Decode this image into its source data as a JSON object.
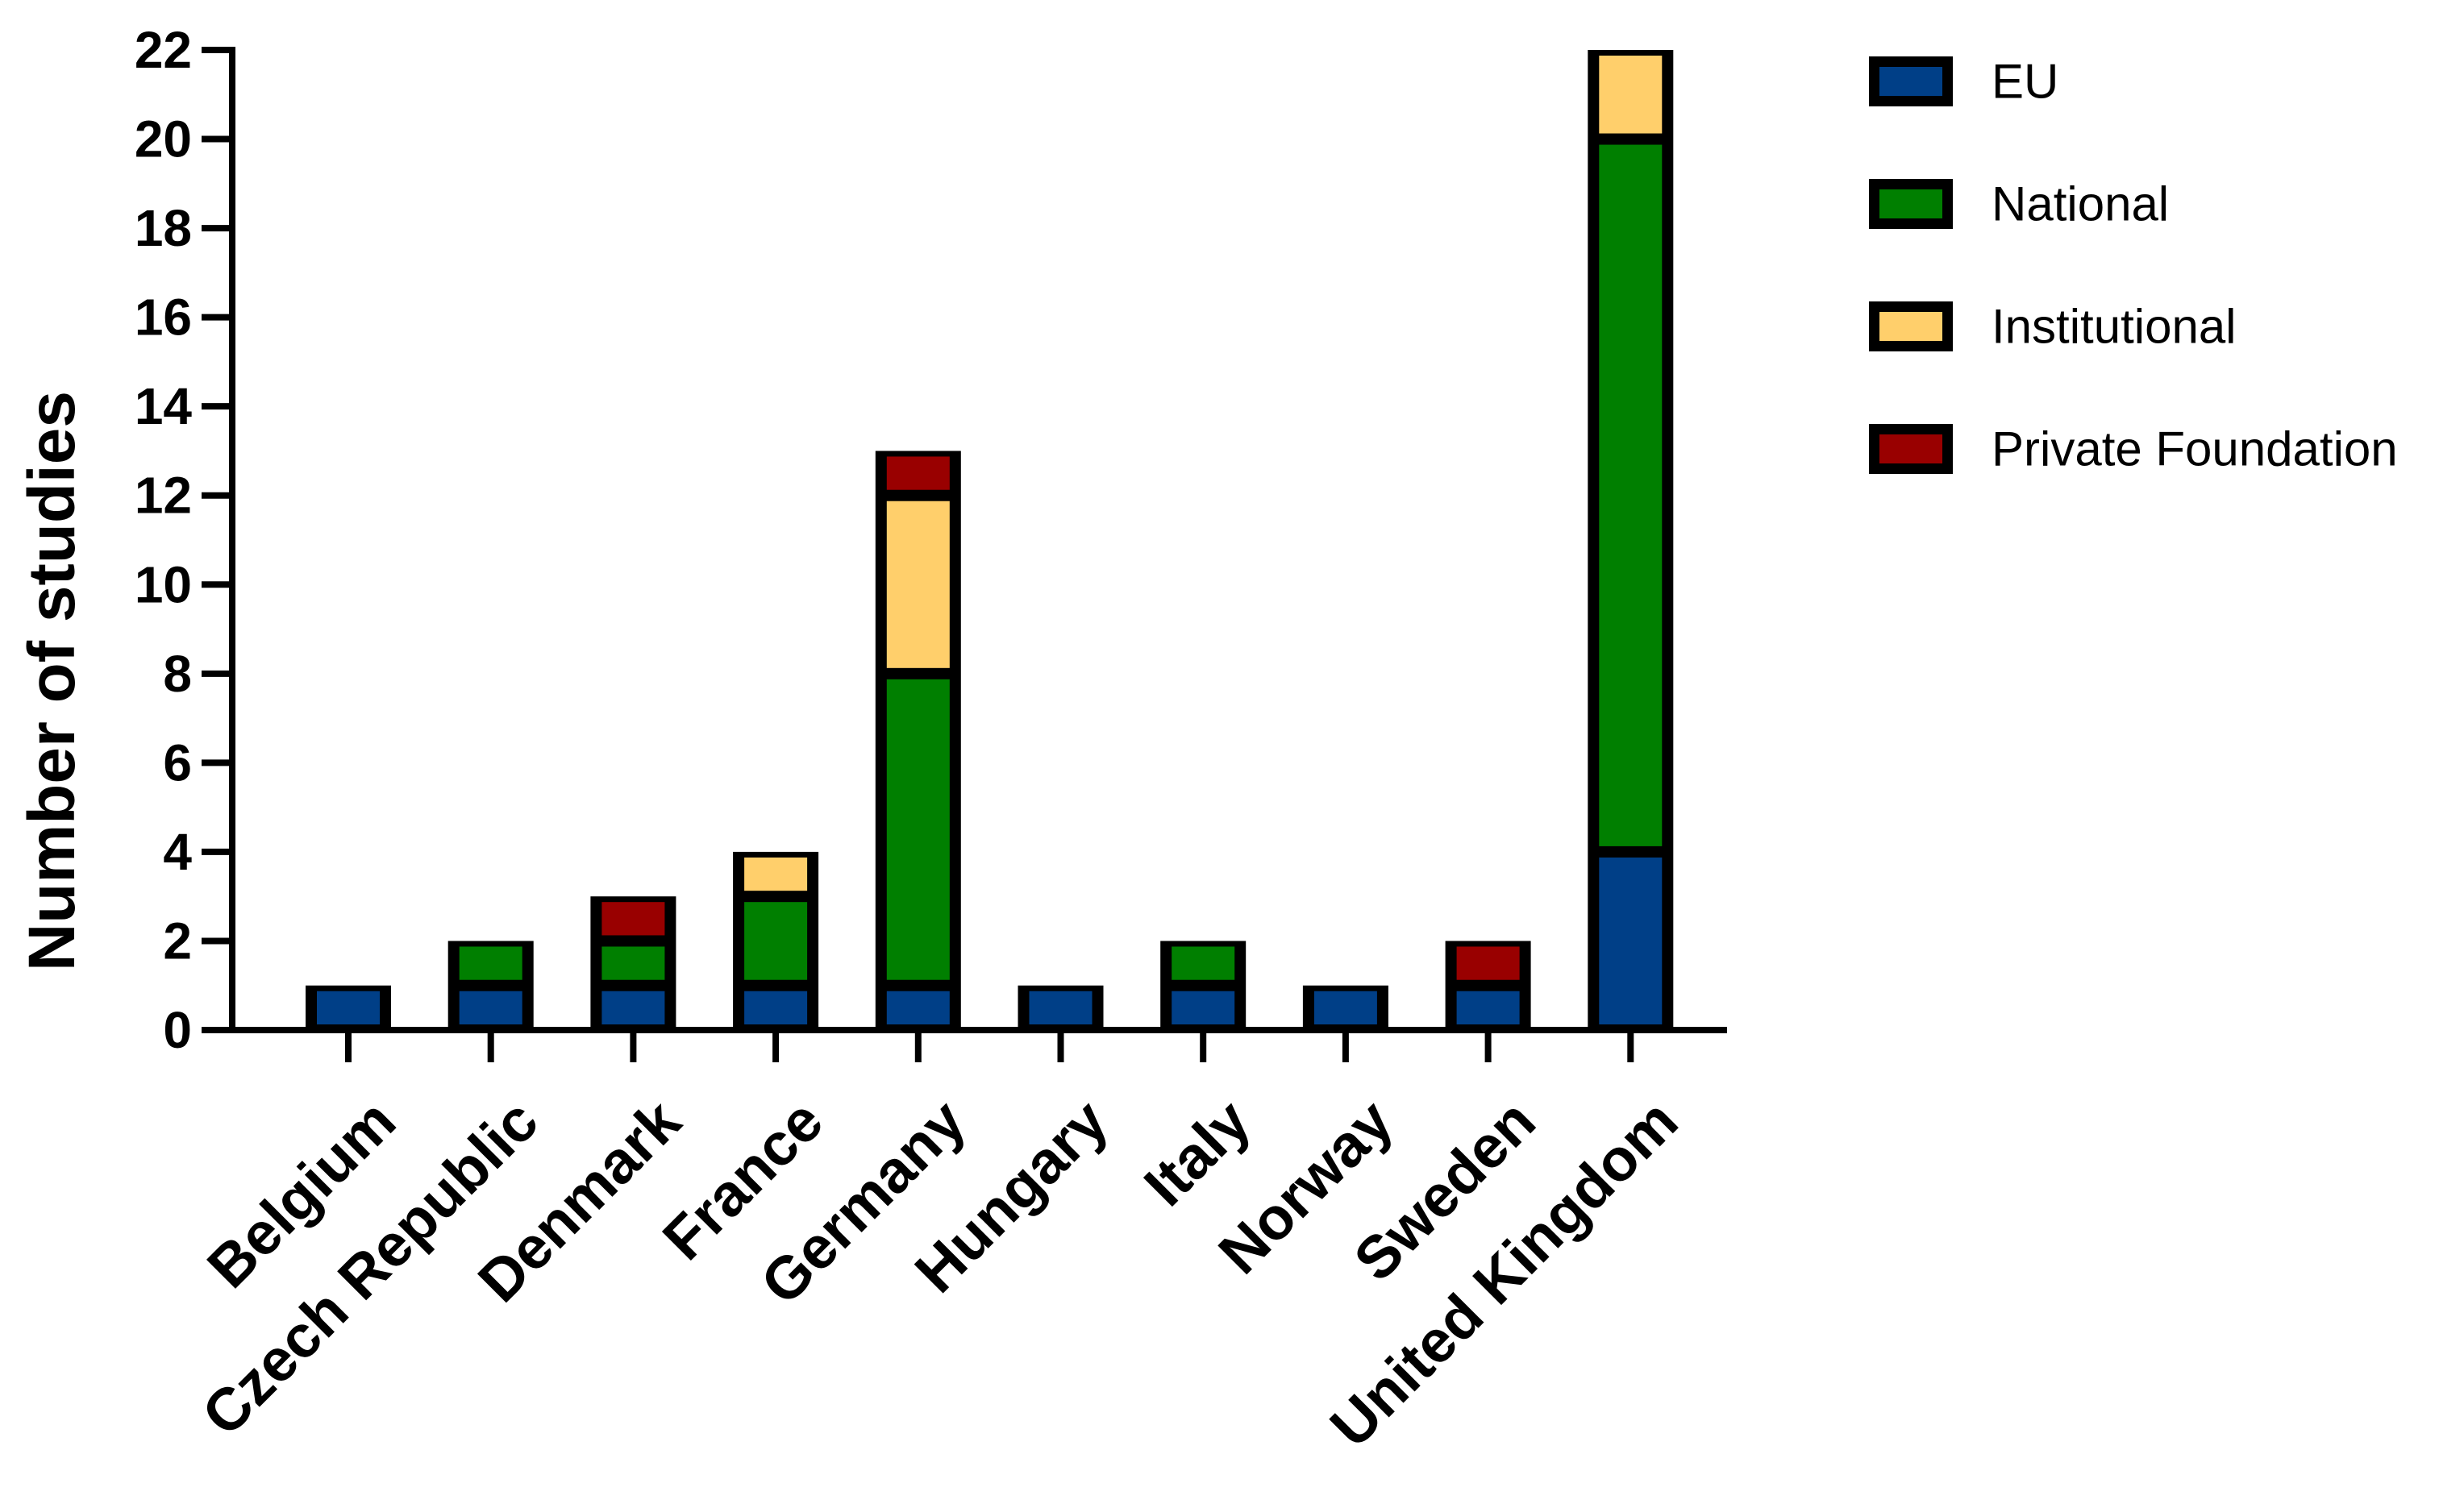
{
  "chart_data": {
    "type": "bar",
    "stacked": true,
    "title": "",
    "xlabel": "",
    "ylabel": "Number of studies",
    "ylim": [
      0,
      22
    ],
    "yticks": [
      "0",
      "2",
      "4",
      "6",
      "8",
      "10",
      "12",
      "14",
      "16",
      "18",
      "20",
      "22"
    ],
    "grid": false,
    "legend_position": "right",
    "categories": [
      "Belgium",
      "Czech Republic",
      "Denmark",
      "France",
      "Germany",
      "Hungary",
      "Italy",
      "Norway",
      "Sweden",
      "United Kingdom"
    ],
    "series": [
      {
        "name": "EU",
        "color": "#003f87",
        "values": [
          1,
          1,
          1,
          1,
          1,
          1,
          1,
          1,
          1,
          4
        ]
      },
      {
        "name": "National",
        "color": "#007f00",
        "values": [
          0,
          1,
          1,
          2,
          7,
          0,
          1,
          0,
          0,
          16
        ]
      },
      {
        "name": "Institutional",
        "color": "#ffcf6b",
        "values": [
          0,
          0,
          0,
          1,
          4,
          0,
          0,
          0,
          0,
          2
        ]
      },
      {
        "name": "Private Foundation",
        "color": "#990000",
        "values": [
          0,
          0,
          1,
          0,
          1,
          0,
          0,
          0,
          1,
          0
        ]
      }
    ]
  }
}
